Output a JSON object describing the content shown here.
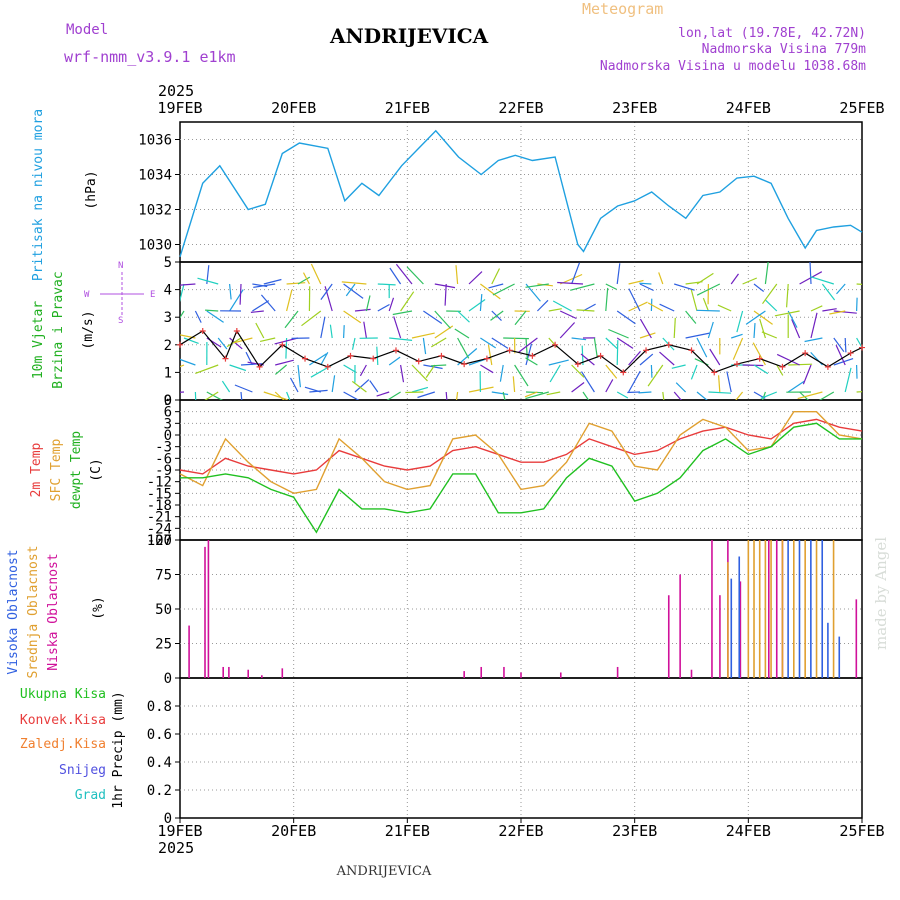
{
  "header": {
    "meteogram_label": "Meteogram",
    "station": "ANDRIJEVICA",
    "model_label": "Model",
    "model_name": "wrf-nmm_v3.9.1 e1km",
    "lonlat": "lon,lat (19.78E, 42.72N)",
    "elevation": "Nadmorska Visina 779m",
    "model_elevation": "Nadmorska Visina u modelu 1038.68m",
    "footer_station": "ANDRIJEVICA",
    "watermark": "made by Angel"
  },
  "colors": {
    "pressure": "#1fa0e0",
    "temp2m": "#e83c3c",
    "sfc_temp": "#e0a030",
    "dewpt": "#20c020",
    "high_cloud": "#3060e0",
    "mid_cloud": "#e0a030",
    "low_cloud": "#d0109a",
    "title_purple": "#a040d0",
    "title_orange": "#f0c080"
  },
  "chart_data": [
    {
      "type": "line",
      "name": "pressure",
      "ylabel_left": "Pritisak na nivou mora",
      "ylabel_unit": "(hPa)",
      "ylim": [
        1029,
        1037
      ],
      "yticks": [
        "1030",
        "1032",
        "1034",
        "1036"
      ],
      "xticks_top_year": "2025",
      "xticks": [
        "19FEB",
        "20FEB",
        "21FEB",
        "22FEB",
        "23FEB",
        "24FEB",
        "25FEB"
      ],
      "x_days": [
        0,
        0.2,
        0.35,
        0.6,
        0.75,
        0.9,
        1.05,
        1.3,
        1.45,
        1.6,
        1.75,
        1.95,
        2.1,
        2.25,
        2.45,
        2.65,
        2.8,
        2.95,
        3.1,
        3.3,
        3.5,
        3.55,
        3.7,
        3.85,
        4.0,
        4.15,
        4.3,
        4.45,
        4.6,
        4.75,
        4.9,
        5.05,
        5.2,
        5.35,
        5.5,
        5.6,
        5.75,
        5.9,
        6.0
      ],
      "values": [
        1029.3,
        1033.5,
        1034.5,
        1032.0,
        1032.3,
        1035.2,
        1035.8,
        1035.5,
        1032.5,
        1033.5,
        1032.8,
        1034.5,
        1035.5,
        1036.5,
        1035.0,
        1034.0,
        1034.8,
        1035.1,
        1034.8,
        1035.0,
        1030.0,
        1029.6,
        1031.5,
        1032.2,
        1032.5,
        1033.0,
        1032.2,
        1031.5,
        1032.8,
        1033.0,
        1033.8,
        1033.9,
        1033.5,
        1031.5,
        1029.8,
        1030.8,
        1031.0,
        1031.1,
        1030.7
      ],
      "grid": true
    },
    {
      "type": "line",
      "name": "wind",
      "ylabel_left": "10m Vjetar Brzina i Pravac",
      "ylabel_unit": "(m/s)",
      "ylim": [
        0,
        5
      ],
      "yticks": [
        "0",
        "1",
        "2",
        "3",
        "4",
        "5"
      ],
      "compass": {
        "n": "N",
        "s": "S",
        "w": "W",
        "e": "E"
      },
      "x_days": [
        0,
        0.2,
        0.4,
        0.5,
        0.7,
        0.9,
        1.1,
        1.3,
        1.5,
        1.7,
        1.9,
        2.1,
        2.3,
        2.5,
        2.7,
        2.9,
        3.1,
        3.3,
        3.5,
        3.7,
        3.9,
        4.1,
        4.3,
        4.5,
        4.7,
        4.9,
        5.1,
        5.3,
        5.5,
        5.7,
        5.9,
        6.0
      ],
      "values": [
        2.0,
        2.5,
        1.5,
        2.5,
        1.2,
        2.0,
        1.5,
        1.2,
        1.6,
        1.5,
        1.8,
        1.4,
        1.6,
        1.3,
        1.5,
        1.8,
        1.6,
        2.0,
        1.3,
        1.6,
        1.0,
        1.8,
        2.0,
        1.8,
        1.0,
        1.3,
        1.5,
        1.2,
        1.7,
        1.2,
        1.7,
        1.9
      ],
      "grid": true
    },
    {
      "type": "line",
      "name": "temperature",
      "ylabel_left": [
        "2m Temp",
        "SFC Temp",
        "dewpt Temp"
      ],
      "ylabel_unit": "(C)",
      "ylim": [
        -27,
        9
      ],
      "yticks": [
        "9",
        "6",
        "3",
        "0",
        "-3",
        "-6",
        "-9",
        "-12",
        "-15",
        "-18",
        "-21",
        "-24",
        "-27"
      ],
      "x_days": [
        0,
        0.2,
        0.4,
        0.6,
        0.8,
        1.0,
        1.2,
        1.4,
        1.6,
        1.8,
        2.0,
        2.2,
        2.4,
        2.6,
        2.8,
        3.0,
        3.2,
        3.4,
        3.6,
        3.8,
        4.0,
        4.2,
        4.4,
        4.6,
        4.8,
        5.0,
        5.2,
        5.4,
        5.6,
        5.8,
        6.0
      ],
      "series": [
        {
          "name": "2m Temp",
          "values": [
            -9,
            -10,
            -6,
            -8,
            -9,
            -10,
            -9,
            -4,
            -6,
            -8,
            -9,
            -8,
            -4,
            -3,
            -5,
            -7,
            -7,
            -5,
            -1,
            -3,
            -5,
            -4,
            -1,
            1,
            2,
            0,
            -1,
            3,
            4,
            2,
            1
          ]
        },
        {
          "name": "SFC Temp",
          "values": [
            -10,
            -13,
            -1,
            -7,
            -12,
            -15,
            -14,
            -1,
            -6,
            -12,
            -14,
            -13,
            -1,
            0,
            -5,
            -14,
            -13,
            -7,
            3,
            1,
            -8,
            -9,
            0,
            4,
            2,
            -4,
            -3,
            6,
            6,
            0,
            -1
          ]
        },
        {
          "name": "dewpt Temp",
          "values": [
            -11,
            -11,
            -10,
            -11,
            -14,
            -16,
            -25,
            -14,
            -19,
            -19,
            -20,
            -19,
            -10,
            -10,
            -20,
            -20,
            -19,
            -11,
            -6,
            -8,
            -17,
            -15,
            -11,
            -4,
            -1,
            -5,
            -3,
            2,
            3,
            -1,
            -1
          ]
        }
      ],
      "grid": true
    },
    {
      "type": "bar",
      "name": "cloud",
      "ylabel_left": [
        "Visoka Oblacnost",
        "Srednja Oblacnost",
        "Niska Oblacnost"
      ],
      "ylabel_unit": "(%)",
      "ylim": [
        0,
        100
      ],
      "yticks": [
        "0",
        "25",
        "50",
        "75",
        "100"
      ],
      "series": [
        {
          "name": "Niska Oblacnost",
          "x_days": [
            0.08,
            0.22,
            0.25,
            0.38,
            0.43,
            0.6,
            0.72,
            0.9,
            2.5,
            2.65,
            2.85,
            3.0,
            3.35,
            3.85,
            4.3,
            4.4,
            4.5,
            4.68,
            4.75,
            4.82,
            4.93,
            5.18,
            5.25,
            5.3,
            5.95
          ],
          "values": [
            38,
            95,
            100,
            8,
            8,
            6,
            2,
            7,
            5,
            8,
            8,
            4,
            4,
            8,
            60,
            75,
            6,
            100,
            60,
            100,
            70,
            100,
            100,
            100,
            57
          ]
        },
        {
          "name": "Srednja Oblacnost",
          "x_days": [
            4.82,
            5.0,
            5.05,
            5.1,
            5.15,
            5.2,
            5.3,
            5.4,
            5.5,
            5.6,
            5.75
          ],
          "values": [
            84,
            100,
            100,
            100,
            100,
            100,
            100,
            100,
            100,
            100,
            100
          ]
        },
        {
          "name": "Visoka Oblacnost",
          "x_days": [
            4.85,
            4.92,
            5.35,
            5.45,
            5.55,
            5.65,
            5.7,
            5.8
          ],
          "values": [
            72,
            88,
            100,
            100,
            100,
            100,
            40,
            30
          ]
        }
      ],
      "grid": true
    },
    {
      "type": "bar",
      "name": "precip",
      "ylabel_left": [
        "Ukupna Kisa",
        "Konvek.Kisa",
        "Zaledj.Kisa",
        "Snijeg",
        "Grad"
      ],
      "ylabel_unit": "1hr Precip (mm)",
      "ylim": [
        0,
        1
      ],
      "yticks": [
        "0",
        "0.2",
        "0.4",
        "0.6",
        "0.8"
      ],
      "x_days": [],
      "values": [],
      "xticks": [
        "19FEB",
        "20FEB",
        "21FEB",
        "22FEB",
        "23FEB",
        "24FEB",
        "25FEB"
      ],
      "xticks_bottom_year": "2025",
      "grid": true
    }
  ]
}
